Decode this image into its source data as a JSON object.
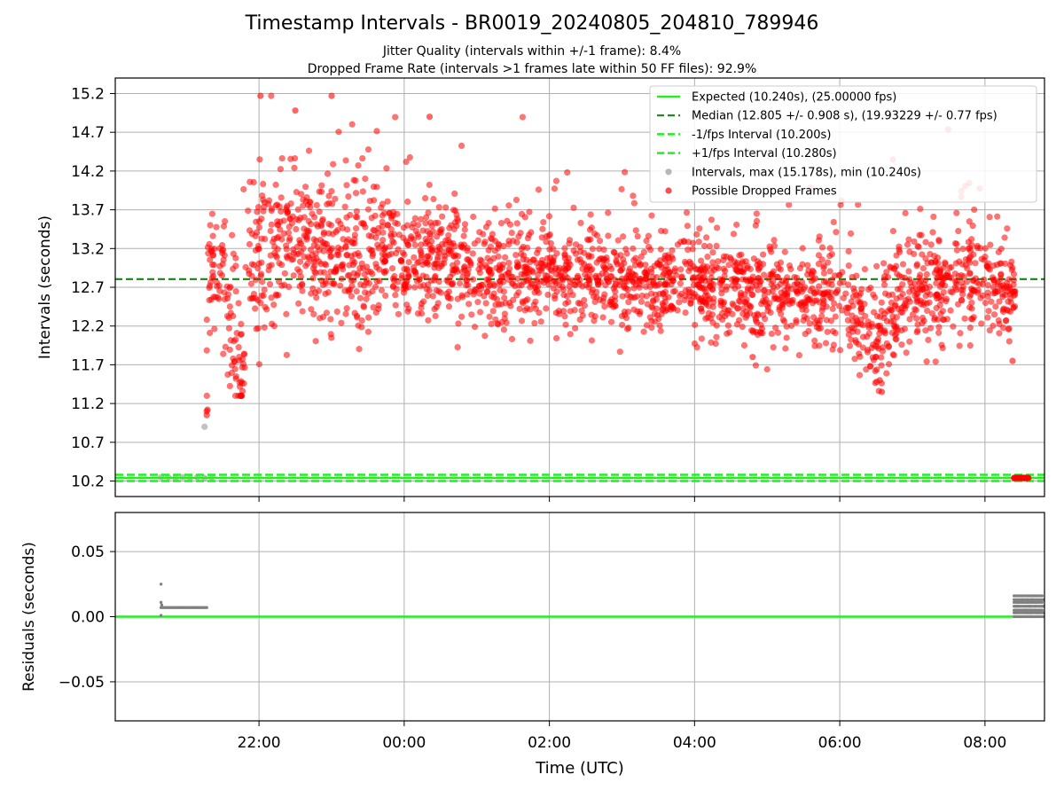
{
  "header": {
    "title": "Timestamp Intervals - BR0019_20240805_204810_789946",
    "subtitle_1": "Jitter Quality (intervals within +/-1 frame): 8.4%",
    "subtitle_2": "Dropped Frame Rate (intervals >1 frames late within 50 FF files): 92.9%"
  },
  "colors": {
    "expected": "#22ee22",
    "median": "#118811",
    "interval_bounds": "#22ee22",
    "normal_points": "#999999",
    "dropped_points": "#ff0000",
    "residual_points": "#808080",
    "grid": "#b0b0b0"
  },
  "chart_data": [
    {
      "type": "scatter",
      "panel": "intervals",
      "xlabel": "",
      "ylabel": "Intervals (seconds)",
      "x_unit": "hours relative to 00:00 UTC (08-05 evening negative)",
      "xlim": [
        -3.98,
        8.82
      ],
      "ylim": [
        10.0,
        15.4
      ],
      "y_ticks": [
        10.2,
        10.7,
        11.2,
        11.7,
        12.2,
        12.7,
        13.2,
        13.7,
        14.2,
        14.7,
        15.2
      ],
      "y_tick_labels": [
        "10.2",
        "10.7",
        "11.2",
        "11.7",
        "12.2",
        "12.7",
        "13.2",
        "13.7",
        "14.2",
        "14.7",
        "15.2"
      ],
      "grid": true,
      "legend_position": "top-right",
      "legend": [
        {
          "label": "Expected (10.240s), (25.00000 fps)",
          "style": "solid-line"
        },
        {
          "label": "Median (12.805 +/- 0.908 s), (19.93229 +/- 0.77 fps)",
          "style": "dashed-line-dark"
        },
        {
          "label": "-1/fps Interval (10.200s)",
          "style": "dashed-line"
        },
        {
          "label": "+1/fps Interval (10.280s)",
          "style": "dashed-line"
        },
        {
          "label": "Intervals, max (15.178s), min (10.240s)",
          "style": "gray-dot"
        },
        {
          "label": "Possible Dropped Frames",
          "style": "red-dot"
        }
      ],
      "reference_lines": {
        "expected": 10.24,
        "median": 12.805,
        "minus_one_fps": 10.2,
        "plus_one_fps": 10.28
      },
      "series": [
        {
          "name": "Intervals, max (15.178s), min (10.240s)",
          "description": "all intervals; visible only where not covered by dropped-frame markers",
          "points": [
            [
              -3.35,
              10.25
            ],
            [
              -3.25,
              10.25
            ],
            [
              -3.15,
              10.24
            ],
            [
              -3.05,
              10.25
            ],
            [
              -2.95,
              10.24
            ],
            [
              -2.85,
              10.25
            ],
            [
              -2.75,
              10.24
            ],
            [
              -2.65,
              10.25
            ],
            [
              -2.75,
              10.9
            ]
          ]
        },
        {
          "name": "Possible Dropped Frames",
          "trend": [
            [
              -2.72,
              11.1
            ],
            [
              -2.7,
              12.6
            ],
            [
              -2.6,
              12.9
            ],
            [
              -2.5,
              13.0
            ],
            [
              -2.4,
              12.3
            ],
            [
              -2.25,
              11.6
            ],
            [
              -2.15,
              12.8
            ],
            [
              -2.0,
              13.1
            ],
            [
              -1.5,
              13.3
            ],
            [
              -1.0,
              13.1
            ],
            [
              0.0,
              13.1
            ],
            [
              1.0,
              12.9
            ],
            [
              2.0,
              12.85
            ],
            [
              3.0,
              12.8
            ],
            [
              4.0,
              12.7
            ],
            [
              5.0,
              12.55
            ],
            [
              6.0,
              12.55
            ],
            [
              6.5,
              12.1
            ],
            [
              7.0,
              12.75
            ],
            [
              7.5,
              12.7
            ],
            [
              8.0,
              12.85
            ],
            [
              8.4,
              12.6
            ]
          ],
          "spread_sd_by_hour": [
            [
              -2.7,
              0.35
            ],
            [
              -2.3,
              0.45
            ],
            [
              -2.0,
              0.55
            ],
            [
              -1.0,
              0.5
            ],
            [
              0.0,
              0.45
            ],
            [
              1.0,
              0.32
            ],
            [
              2.0,
              0.3
            ],
            [
              3.0,
              0.3
            ],
            [
              4.0,
              0.3
            ],
            [
              5.0,
              0.32
            ],
            [
              6.0,
              0.32
            ],
            [
              7.0,
              0.4
            ],
            [
              8.0,
              0.35
            ],
            [
              8.4,
              0.3
            ]
          ],
          "noted_points": [
            [
              -2.72,
              11.1
            ],
            [
              -2.72,
              11.05
            ],
            [
              -2.71,
              11.12
            ],
            [
              -1.98,
              15.17
            ],
            [
              -1.0,
              15.17
            ],
            [
              0.35,
              14.9
            ],
            [
              -1.5,
              14.98
            ],
            [
              4.8,
              11.8
            ],
            [
              6.58,
              11.35
            ],
            [
              6.55,
              11.5
            ],
            [
              8.38,
              11.75
            ]
          ],
          "points_near_10_24": {
            "x_from": 8.4,
            "x_to": 8.6,
            "y": 10.24
          }
        }
      ]
    },
    {
      "type": "scatter",
      "panel": "residuals",
      "xlabel": "Time (UTC)",
      "ylabel": "Residuals (seconds)",
      "xlim": [
        -3.98,
        8.82
      ],
      "ylim": [
        -0.08,
        0.08
      ],
      "x_ticks": [
        -2,
        0,
        2,
        4,
        6,
        8
      ],
      "x_tick_labels": [
        "22:00",
        "00:00",
        "02:00",
        "04:00",
        "06:00",
        "08:00"
      ],
      "y_ticks": [
        -0.05,
        0.0,
        0.05
      ],
      "y_tick_labels": [
        "−0.05",
        "0.00",
        "0.05"
      ],
      "grid": true,
      "reference_line": 0.0,
      "series": [
        {
          "name": "",
          "early_cluster": {
            "x_from": -3.35,
            "x_to": -2.72,
            "y": 0.007
          },
          "early_outliers": [
            [
              -3.35,
              0.025
            ],
            [
              -3.35,
              0.011
            ],
            [
              -3.34,
              0.009
            ],
            [
              -3.35,
              0.001
            ]
          ],
          "late_cluster": {
            "x_from": 8.4,
            "x_to": 8.8,
            "y_levels": [
              0.0,
              0.003,
              0.005,
              0.008,
              0.011,
              0.013,
              0.016
            ]
          }
        }
      ]
    }
  ]
}
